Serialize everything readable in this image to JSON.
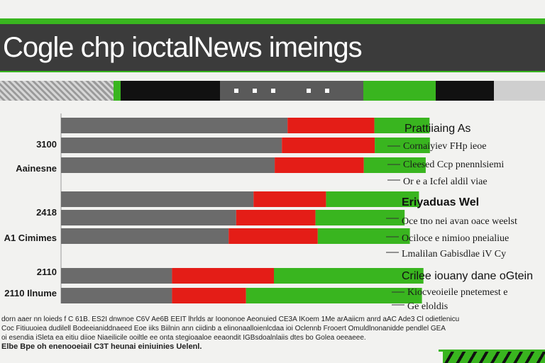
{
  "header": {
    "title": "Cogle chp ioctalNews imeings"
  },
  "strip": {
    "dots": 5
  },
  "colors": {
    "gray": "#6b6b6b",
    "red": "#e41d17",
    "green": "#39b51f",
    "header_bg": "#3b3b3b",
    "accent": "#39b51f"
  },
  "chart_data": {
    "type": "bar",
    "orientation": "horizontal",
    "stacked": true,
    "xlim": [
      0,
      100
    ],
    "categories": [
      "",
      "",
      "",
      "",
      "",
      "",
      "",
      ""
    ],
    "y_labels": [
      "",
      "3100",
      "Aainesne",
      "2418",
      "A1 Cimimes",
      "2110",
      "2110 Ilnume"
    ],
    "group_labels": [
      {
        "text": "Prattiiaing As",
        "bold": false
      },
      {
        "text": "Eriyaduas Wel",
        "bold": true
      },
      {
        "text": "Crilee iouany dane oGtein",
        "bold": false
      }
    ],
    "annotations": [
      "Cornaiyiev FHp ieoe",
      "Cleesed Ccp pnennlsiemi",
      "Or e a Icfel aldil viae",
      "Oce tno nei avan oace weelst",
      "Ociloce e nimioo pneialiue",
      "Lmalilan Gabisdlae iV Cy",
      "Kiocveoieile pnetemest e",
      "Ge eloldis"
    ],
    "series": [
      {
        "name": "",
        "color": "#6b6b6b",
        "values": [
          60.0,
          58.5,
          56.6,
          51.0,
          46.4,
          44.4,
          29.4,
          29.4
        ]
      },
      {
        "name": "",
        "color": "#e41d17",
        "values": [
          23.0,
          24.6,
          23.6,
          19.2,
          21.0,
          23.6,
          27.0,
          19.6
        ]
      },
      {
        "name": "",
        "color": "#39b51f",
        "values": [
          14.6,
          14.6,
          16.4,
          24.6,
          23.6,
          24.4,
          39.6,
          46.6
        ]
      }
    ]
  },
  "notes": [
    "dorn aaer nn loieds f C 61B. ES2I dnwnoe C6V Ae6B EEIT lhrlds ar Ioononoe Aeonuied CE3A IKoem 1Me arAaiicm anrd aAC Ade3 Cl odietlenicu",
    "Coc Fitiuuoiea dudilell Bodeeianiddnaeed Eoe iiks Biilnin ann ciidinb a elinonaalloienlcdaa ioi Oclennb Frooert Omuldlnonanidde pendlel GEA",
    "oi esendia iSleta ea eitiu diioe Niaeilicile ooiltle ee onta stegioaaloe eeaondit IGBsdoalnlaiis dtes bo Golea oeeaeee.",
    "Elbe Bpe oh enenooeiail C3T heunai einiuinies Uelenl."
  ]
}
